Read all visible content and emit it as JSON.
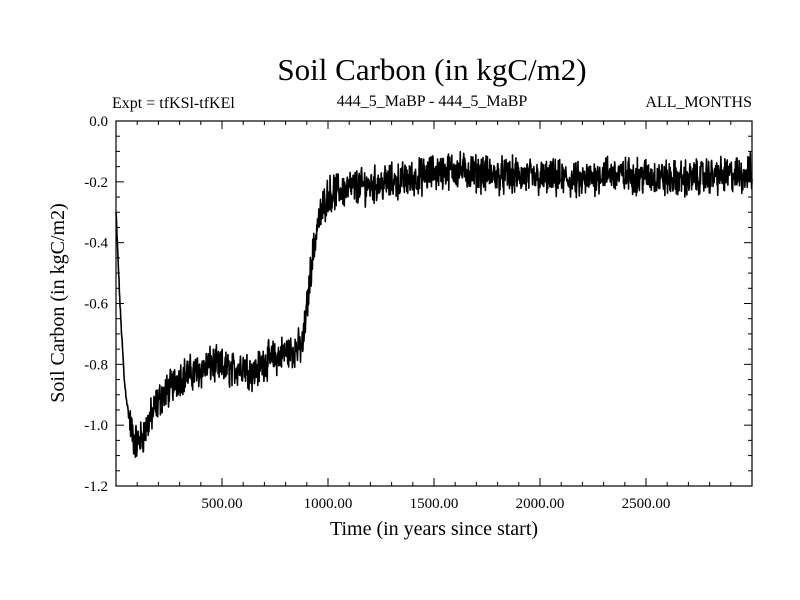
{
  "chart_data": {
    "type": "line",
    "title": "Soil Carbon (in kgC/m2)",
    "subtitle_left": "Expt = tfKSl-tfKEl",
    "subtitle_center": "444_5_MaBP - 444_5_MaBP",
    "subtitle_right": "ALL_MONTHS",
    "xlabel": "Time (in years since start)",
    "ylabel": "Soil Carbon (in kgC/m2)",
    "xlim": [
      0,
      3000
    ],
    "ylim": [
      -1.2,
      0.0
    ],
    "xticks": [
      500,
      1000,
      1500,
      2000,
      2500
    ],
    "xtick_labels": [
      "500.00",
      "1000.00",
      "1500.00",
      "2000.00",
      "2500.00"
    ],
    "yticks": [
      0.0,
      -0.2,
      -0.4,
      -0.6,
      -0.8,
      -1.0,
      -1.2
    ],
    "ytick_labels": [
      "0.0",
      "-0.2",
      "-0.4",
      "-0.6",
      "-0.8",
      "-1.0",
      "-1.2"
    ],
    "grid": false,
    "series": [
      {
        "name": "Soil Carbon",
        "color": "#000000",
        "points": [
          [
            0,
            -0.3
          ],
          [
            20,
            -0.62
          ],
          [
            40,
            -0.86
          ],
          [
            60,
            -0.97
          ],
          [
            80,
            -1.04
          ],
          [
            100,
            -1.06
          ],
          [
            130,
            -1.03
          ],
          [
            160,
            -0.98
          ],
          [
            200,
            -0.92
          ],
          [
            250,
            -0.88
          ],
          [
            300,
            -0.84
          ],
          [
            350,
            -0.83
          ],
          [
            400,
            -0.82
          ],
          [
            450,
            -0.8
          ],
          [
            500,
            -0.81
          ],
          [
            550,
            -0.82
          ],
          [
            600,
            -0.8
          ],
          [
            650,
            -0.83
          ],
          [
            700,
            -0.79
          ],
          [
            750,
            -0.78
          ],
          [
            800,
            -0.76
          ],
          [
            850,
            -0.75
          ],
          [
            880,
            -0.74
          ],
          [
            900,
            -0.62
          ],
          [
            920,
            -0.48
          ],
          [
            950,
            -0.34
          ],
          [
            980,
            -0.28
          ],
          [
            1000,
            -0.24
          ],
          [
            1050,
            -0.23
          ],
          [
            1100,
            -0.22
          ],
          [
            1200,
            -0.21
          ],
          [
            1300,
            -0.2
          ],
          [
            1400,
            -0.19
          ],
          [
            1500,
            -0.17
          ],
          [
            1600,
            -0.16
          ],
          [
            1700,
            -0.17
          ],
          [
            1800,
            -0.18
          ],
          [
            1900,
            -0.18
          ],
          [
            2000,
            -0.19
          ],
          [
            2100,
            -0.19
          ],
          [
            2200,
            -0.2
          ],
          [
            2300,
            -0.17
          ],
          [
            2400,
            -0.18
          ],
          [
            2500,
            -0.18
          ],
          [
            2600,
            -0.19
          ],
          [
            2700,
            -0.19
          ],
          [
            2800,
            -0.18
          ],
          [
            2900,
            -0.18
          ],
          [
            3000,
            -0.17
          ]
        ]
      }
    ]
  }
}
